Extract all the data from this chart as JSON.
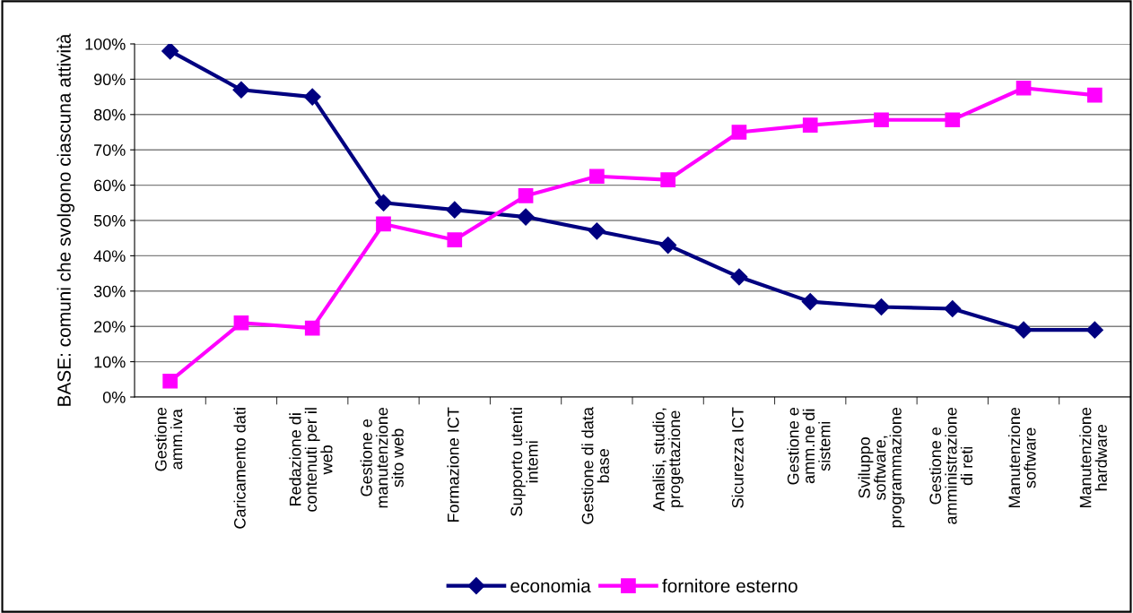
{
  "chart_data": {
    "type": "line",
    "ylabel": "BASE: comuni che svolgono ciascuna attività",
    "categories": [
      "Gestione\namm.iva",
      "Caricamento dati",
      "Redazione di\ncontenuti per il\nweb",
      "Gestione e\nmanutenzione\nsito web",
      "Formazione ICT",
      "Supporto utenti\nintemi",
      "Gestione di data\nbase",
      "Analisi, studio,\nprogettazione",
      "Sicurezza ICT",
      "Gestione e\namm.ne di\nsistemi",
      "Sviluppo\nsoftware,\nprogrammazione",
      "Gestione e\namministrazione\ndi reti",
      "Manutenzione\nsoftware",
      "Manutenzione\nhardware"
    ],
    "series": [
      {
        "name": "economia",
        "color": "#000080",
        "marker": "diamond",
        "values": [
          98,
          87,
          85,
          55,
          53,
          51,
          47,
          43,
          34,
          27,
          25.5,
          25,
          19,
          19
        ]
      },
      {
        "name": "fornitore esterno",
        "color": "#ff00ff",
        "marker": "square",
        "values": [
          4.5,
          21,
          19.5,
          49,
          44.5,
          57,
          62.5,
          61.5,
          75,
          77,
          78.5,
          78.5,
          87.5,
          85.5
        ]
      }
    ],
    "ylim": [
      0,
      100
    ],
    "yticks": [
      {
        "value": 0,
        "label": "0%"
      },
      {
        "value": 10,
        "label": "10%"
      },
      {
        "value": 20,
        "label": "20%"
      },
      {
        "value": 30,
        "label": "30%"
      },
      {
        "value": 40,
        "label": "40%"
      },
      {
        "value": 50,
        "label": "50%"
      },
      {
        "value": 60,
        "label": "60%"
      },
      {
        "value": 70,
        "label": "70%"
      },
      {
        "value": 80,
        "label": "80%"
      },
      {
        "value": 90,
        "label": "90%"
      },
      {
        "value": 100,
        "label": "100%"
      }
    ],
    "grid": "y",
    "legend": "bottom",
    "line_style": "solid"
  }
}
